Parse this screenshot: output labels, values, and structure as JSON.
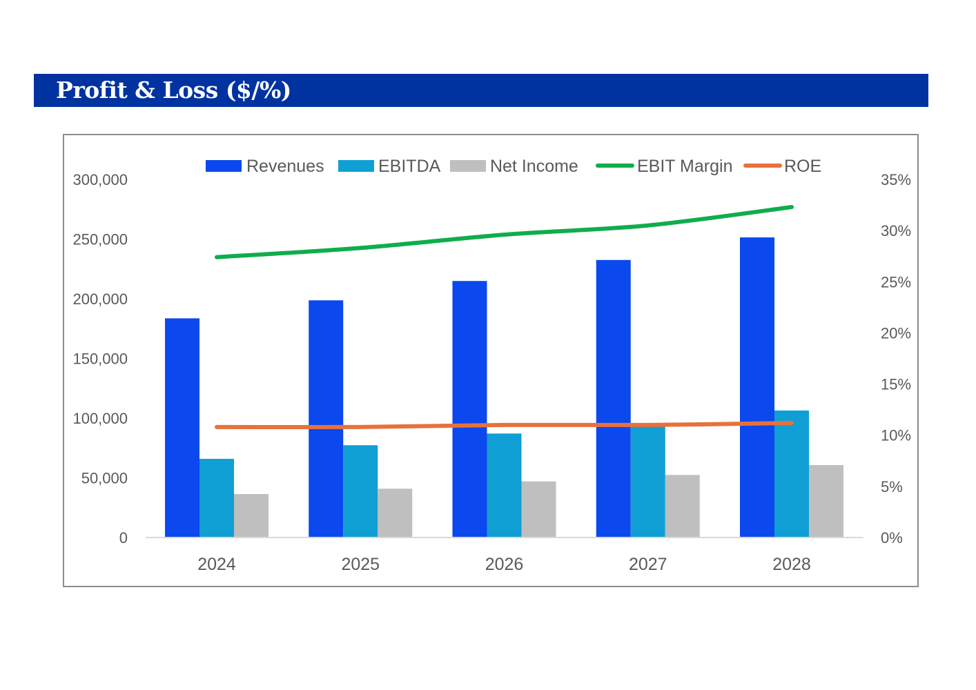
{
  "header": {
    "title": "Profit & Loss ($/%)"
  },
  "chart_data": {
    "type": "bar",
    "title": "Profit & Loss ($/%)",
    "xlabel": "",
    "ylabel": "",
    "y2label": "",
    "categories": [
      "2024",
      "2025",
      "2026",
      "2027",
      "2028"
    ],
    "ylim": [
      0,
      300000
    ],
    "yticks": [
      0,
      50000,
      100000,
      150000,
      200000,
      250000,
      300000
    ],
    "ytick_labels": [
      "0",
      "50,000",
      "100,000",
      "150,000",
      "200,000",
      "250,000",
      "300,000"
    ],
    "y2lim": [
      0,
      0.35
    ],
    "y2ticks": [
      0,
      0.05,
      0.1,
      0.15,
      0.2,
      0.25,
      0.3,
      0.35
    ],
    "y2tick_labels": [
      "0%",
      "5%",
      "10%",
      "15%",
      "20%",
      "25%",
      "30%",
      "35%"
    ],
    "grid": false,
    "legend_position": "top",
    "series": [
      {
        "name": "Revenues",
        "type": "bar",
        "axis": "left",
        "color": "#0b48ee",
        "values": [
          183600,
          198700,
          214900,
          232500,
          251400
        ]
      },
      {
        "name": "EBITDA",
        "type": "bar",
        "axis": "left",
        "color": "#0f9fd4",
        "values": [
          65900,
          77300,
          87100,
          94500,
          106400
        ]
      },
      {
        "name": "Net Income",
        "type": "bar",
        "axis": "left",
        "color": "#bfbfbf",
        "values": [
          36400,
          40900,
          47000,
          52400,
          60700
        ]
      },
      {
        "name": "EBIT Margin",
        "type": "line",
        "axis": "right",
        "color": "#0fad4c",
        "values": [
          0.274,
          0.283,
          0.296,
          0.305,
          0.323
        ]
      },
      {
        "name": "ROE",
        "type": "line",
        "axis": "right",
        "color": "#e8713a",
        "values": [
          0.108,
          0.108,
          0.11,
          0.11,
          0.112
        ]
      }
    ]
  }
}
